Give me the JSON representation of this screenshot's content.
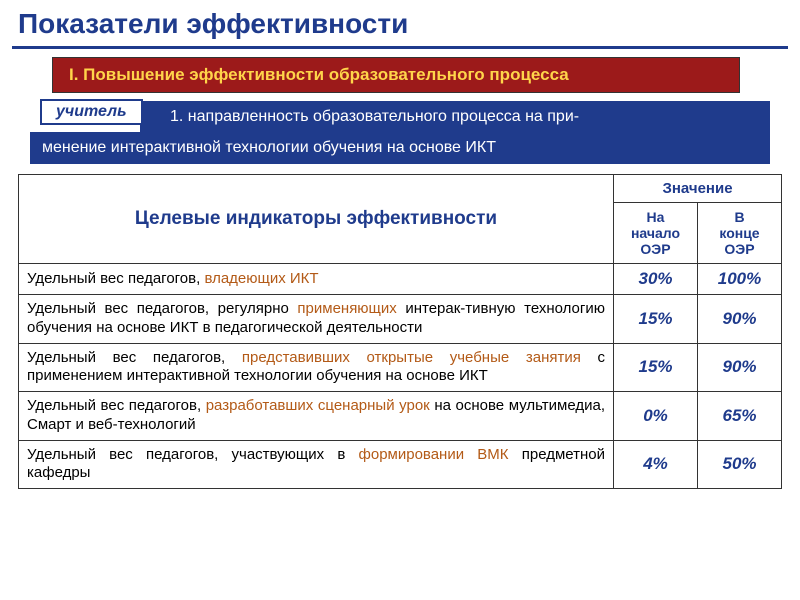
{
  "title": "Показатели эффективности",
  "title_color": "#1f3b8c",
  "hr_color": "#1f3b8c",
  "red_banner": {
    "text": "I. Повышение эффективности образовательного процесса",
    "bg": "#9c1a1a",
    "fg": "#ffd54a"
  },
  "teacher_tab": "учитель",
  "sub_banner_line1": "1. направленность образовательного процесса на при-",
  "sub_banner_line2": "менение интерактивной технологии обучения на основе ИКТ",
  "sub_banner_bg": "#1f3b8c",
  "table": {
    "header_main": "Целевые индикаторы эффективности",
    "header_value": "Значение",
    "col_start": "На\nначало\nОЭР",
    "col_end": "В\nконце\nОЭР",
    "header_color": "#1f3b8c",
    "rows": [
      {
        "pre": "Удельный вес педагогов, ",
        "hl": "владеющих ИКТ",
        "post": "",
        "start": "30%",
        "end": "100%"
      },
      {
        "pre": "Удельный вес педагогов, регулярно ",
        "hl": "применяющих",
        "post": " интерак-тивную технологию обучения на основе ИКТ в педагогической деятельности",
        "start": "15%",
        "end": "90%"
      },
      {
        "pre": "Удельный вес педагогов, ",
        "hl": "представивших открытые учебные занятия",
        "post": " с применением интерактивной технологии обучения на основе ИКТ",
        "start": "15%",
        "end": "90%"
      },
      {
        "pre": "Удельный вес педагогов, ",
        "hl": "разработавших сценарный урок",
        "post": " на основе мультимедиа, Смарт и веб-технологий",
        "start": "0%",
        "end": "65%"
      },
      {
        "pre": "Удельный вес педагогов, участвующих в ",
        "hl": "формировании ВМК",
        "post": " предметной кафедры",
        "start": "4%",
        "end": "50%"
      }
    ],
    "highlight_color": "#b35a17"
  }
}
